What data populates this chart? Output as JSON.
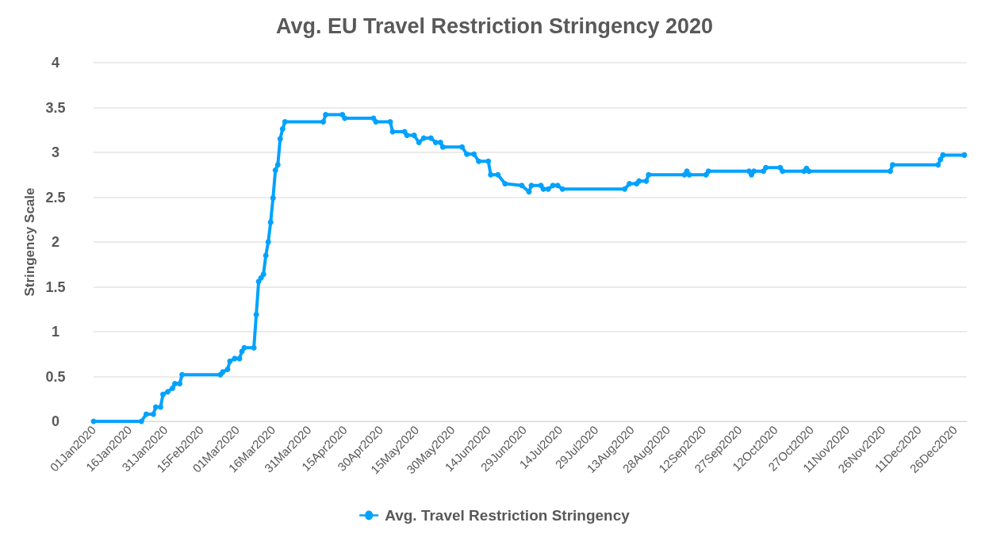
{
  "chart_data": {
    "type": "line",
    "title": "Avg. EU Travel Restriction Stringency 2020",
    "ylabel": "Stringency Scale",
    "x": [
      "2020-01-01",
      "2020-01-21",
      "2020-01-23",
      "2020-01-26",
      "2020-01-27",
      "2020-01-29",
      "2020-01-30",
      "2020-02-01",
      "2020-02-03",
      "2020-02-04",
      "2020-02-06",
      "2020-02-07",
      "2020-02-23",
      "2020-02-24",
      "2020-02-26",
      "2020-02-27",
      "2020-02-29",
      "2020-03-02",
      "2020-03-03",
      "2020-03-04",
      "2020-03-08",
      "2020-03-09",
      "2020-03-10",
      "2020-03-11",
      "2020-03-12",
      "2020-03-13",
      "2020-03-14",
      "2020-03-15",
      "2020-03-16",
      "2020-03-17",
      "2020-03-18",
      "2020-03-19",
      "2020-03-20",
      "2020-03-21",
      "2020-04-06",
      "2020-04-07",
      "2020-04-14",
      "2020-04-15",
      "2020-04-27",
      "2020-04-28",
      "2020-05-04",
      "2020-05-05",
      "2020-05-10",
      "2020-05-11",
      "2020-05-14",
      "2020-05-16",
      "2020-05-18",
      "2020-05-21",
      "2020-05-23",
      "2020-05-25",
      "2020-05-26",
      "2020-06-03",
      "2020-06-05",
      "2020-06-08",
      "2020-06-10",
      "2020-06-14",
      "2020-06-15",
      "2020-06-18",
      "2020-06-21",
      "2020-06-28",
      "2020-07-01",
      "2020-07-02",
      "2020-07-06",
      "2020-07-07",
      "2020-07-09",
      "2020-07-11",
      "2020-07-13",
      "2020-07-15",
      "2020-08-10",
      "2020-08-12",
      "2020-08-15",
      "2020-08-16",
      "2020-08-19",
      "2020-08-20",
      "2020-09-04",
      "2020-09-05",
      "2020-09-06",
      "2020-09-13",
      "2020-09-14",
      "2020-10-01",
      "2020-10-02",
      "2020-10-03",
      "2020-10-07",
      "2020-10-08",
      "2020-10-14",
      "2020-10-15",
      "2020-10-24",
      "2020-10-25",
      "2020-10-26",
      "2020-11-29",
      "2020-11-30",
      "2020-12-19",
      "2020-12-20",
      "2020-12-21",
      "2020-12-30"
    ],
    "series": [
      {
        "name": "Avg. Travel Restriction Stringency",
        "color": "#00a2ff",
        "values": [
          0,
          0,
          0.08,
          0.08,
          0.16,
          0.16,
          0.3,
          0.33,
          0.37,
          0.42,
          0.42,
          0.52,
          0.52,
          0.55,
          0.58,
          0.67,
          0.7,
          0.7,
          0.78,
          0.82,
          0.82,
          1.19,
          1.56,
          1.6,
          1.64,
          1.85,
          2.0,
          2.22,
          2.49,
          2.8,
          2.86,
          3.15,
          3.26,
          3.34,
          3.34,
          3.42,
          3.42,
          3.38,
          3.38,
          3.34,
          3.34,
          3.23,
          3.23,
          3.19,
          3.19,
          3.11,
          3.16,
          3.16,
          3.11,
          3.11,
          3.06,
          3.06,
          2.98,
          2.98,
          2.9,
          2.9,
          2.75,
          2.75,
          2.65,
          2.63,
          2.56,
          2.63,
          2.63,
          2.59,
          2.59,
          2.63,
          2.63,
          2.59,
          2.59,
          2.65,
          2.65,
          2.68,
          2.68,
          2.75,
          2.75,
          2.79,
          2.75,
          2.75,
          2.79,
          2.79,
          2.75,
          2.79,
          2.79,
          2.83,
          2.83,
          2.79,
          2.79,
          2.82,
          2.79,
          2.79,
          2.86,
          2.86,
          2.92,
          2.97,
          2.97
        ]
      }
    ],
    "xlim": [
      "2020-01-01",
      "2020-12-31"
    ],
    "xticks": [
      {
        "value": "2020-01-01",
        "label": "01Jan2020"
      },
      {
        "value": "2020-01-16",
        "label": "16Jan2020"
      },
      {
        "value": "2020-01-31",
        "label": "31Jan2020"
      },
      {
        "value": "2020-02-15",
        "label": "15Feb2020"
      },
      {
        "value": "2020-03-01",
        "label": "01Mar2020"
      },
      {
        "value": "2020-03-16",
        "label": "16Mar2020"
      },
      {
        "value": "2020-03-31",
        "label": "31Mar2020"
      },
      {
        "value": "2020-04-15",
        "label": "15Apr2020"
      },
      {
        "value": "2020-04-30",
        "label": "30Apr2020"
      },
      {
        "value": "2020-05-15",
        "label": "15May2020"
      },
      {
        "value": "2020-05-30",
        "label": "30May2020"
      },
      {
        "value": "2020-06-14",
        "label": "14Jun2020"
      },
      {
        "value": "2020-06-29",
        "label": "29Jun2020"
      },
      {
        "value": "2020-07-14",
        "label": "14Jul2020"
      },
      {
        "value": "2020-07-29",
        "label": "29Jul2020"
      },
      {
        "value": "2020-08-13",
        "label": "13Aug2020"
      },
      {
        "value": "2020-08-28",
        "label": "28Aug2020"
      },
      {
        "value": "2020-09-12",
        "label": "12Sep2020"
      },
      {
        "value": "2020-09-27",
        "label": "27Sep2020"
      },
      {
        "value": "2020-10-12",
        "label": "12Oct2020"
      },
      {
        "value": "2020-10-27",
        "label": "27Oct2020"
      },
      {
        "value": "2020-11-11",
        "label": "11Nov2020"
      },
      {
        "value": "2020-11-26",
        "label": "26Nov2020"
      },
      {
        "value": "2020-12-11",
        "label": "11Dec2020"
      },
      {
        "value": "2020-12-26",
        "label": "26Dec2020"
      }
    ],
    "ylim": [
      0,
      4
    ],
    "yticks": [
      0,
      0.5,
      1,
      1.5,
      2,
      2.5,
      3,
      3.5,
      4
    ],
    "grid": "y",
    "legend": "bottom",
    "marker": "circle",
    "line_style": "solid"
  }
}
